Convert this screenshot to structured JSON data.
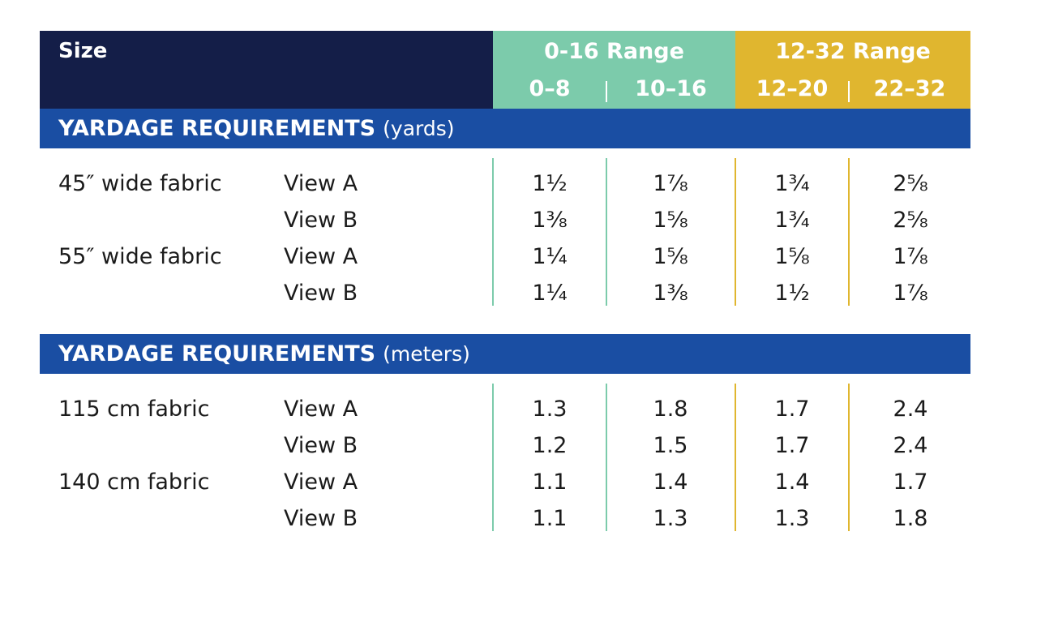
{
  "header": {
    "size_label": "Size",
    "ranges": [
      {
        "title": "0-16 Range",
        "sizes": [
          "0–8",
          "10–16"
        ],
        "color": "#7ccbab"
      },
      {
        "title": "12-32 Range",
        "sizes": [
          "12–20",
          "22–32"
        ],
        "color": "#e0b62f"
      }
    ],
    "background": "#141e48"
  },
  "sections": [
    {
      "title": "YARDAGE REQUIREMENTS",
      "unit": "(yards)",
      "rows": [
        {
          "fabric": "45″ wide fabric",
          "view": "View A",
          "values": [
            "1½",
            "1⅞",
            "1¾",
            "2⅝"
          ]
        },
        {
          "fabric": "",
          "view": "View B",
          "values": [
            "1⅜",
            "1⅝",
            "1¾",
            "2⅝"
          ]
        },
        {
          "fabric": "55″ wide fabric",
          "view": "View A",
          "values": [
            "1¼",
            "1⅝",
            "1⅝",
            "1⅞"
          ]
        },
        {
          "fabric": "",
          "view": "View B",
          "values": [
            "1¼",
            "1⅜",
            "1½",
            "1⅞"
          ]
        }
      ]
    },
    {
      "title": "YARDAGE REQUIREMENTS",
      "unit": "(meters)",
      "rows": [
        {
          "fabric": "115 cm fabric",
          "view": "View A",
          "values": [
            "1.3",
            "1.8",
            "1.7",
            "2.4"
          ]
        },
        {
          "fabric": "",
          "view": "View B",
          "values": [
            "1.2",
            "1.5",
            "1.7",
            "2.4"
          ]
        },
        {
          "fabric": "140 cm fabric",
          "view": "View A",
          "values": [
            "1.1",
            "1.4",
            "1.4",
            "1.7"
          ]
        },
        {
          "fabric": "",
          "view": "View B",
          "values": [
            "1.1",
            "1.3",
            "1.3",
            "1.8"
          ]
        }
      ]
    }
  ],
  "colors": {
    "section_bar": "#1a4ea3",
    "teal": "#7ccbab",
    "gold": "#e0b62f"
  }
}
